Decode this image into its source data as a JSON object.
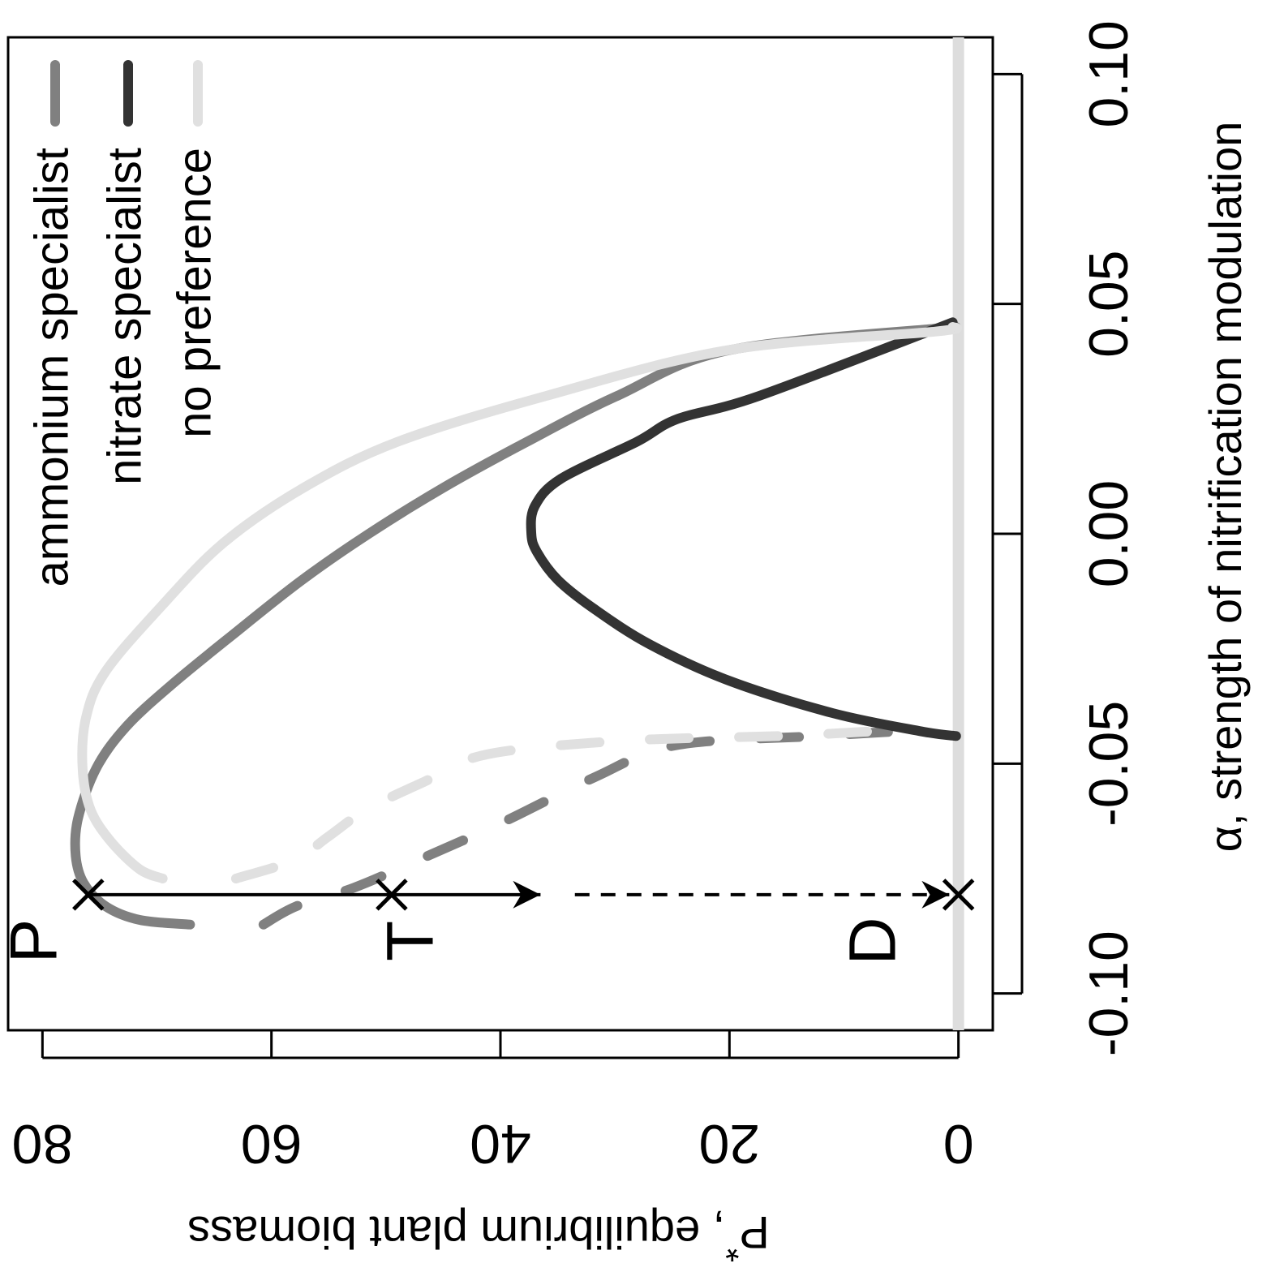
{
  "chart_data": {
    "type": "line",
    "orientation": "rotated-90-clockwise",
    "xlabel": "α, strength of nitrification modulation",
    "ylabel": "P*, equilibrium plant biomass",
    "ylabel_main": "P",
    "ylabel_super": "*",
    "ylabel_rest": ", equilibrium plant biomass",
    "xlim": [
      -0.108,
      0.108
    ],
    "ylim": [
      -3,
      83
    ],
    "x_ticks": [
      -0.1,
      -0.05,
      0.0,
      0.05,
      0.1
    ],
    "x_tick_labels": [
      "-0.10",
      "-0.05",
      "0.00",
      "0.05",
      "0.10"
    ],
    "y_ticks": [
      0,
      20,
      40,
      60,
      80
    ],
    "y_tick_labels": [
      "0",
      "20",
      "40",
      "60",
      "80"
    ],
    "grid": false,
    "legend_position": "top-right",
    "series": [
      {
        "name": "ammonium specialist",
        "color": "#808080",
        "stable": [
          [
            -0.085,
            67.1
          ],
          [
            -0.084,
            71.5
          ],
          [
            -0.081,
            74.5
          ],
          [
            -0.076,
            76.4
          ],
          [
            -0.07,
            77.1
          ],
          [
            -0.062,
            76.9
          ],
          [
            -0.051,
            75.3
          ],
          [
            -0.042,
            72.7
          ],
          [
            -0.033,
            68.8
          ],
          [
            -0.022,
            63.4
          ],
          [
            -0.01,
            57.3
          ],
          [
            0.0,
            51.5
          ],
          [
            0.01,
            45.0
          ],
          [
            0.02,
            37.7
          ],
          [
            0.03,
            29.8
          ],
          [
            0.04,
            19.9
          ],
          [
            0.045,
            0.2
          ]
        ],
        "unstable": [
          [
            -0.085,
            60.7
          ],
          [
            -0.081,
            57.8
          ],
          [
            -0.077,
            52.8
          ],
          [
            -0.071,
            47.2
          ],
          [
            -0.063,
            40.0
          ],
          [
            -0.053,
            31.8
          ],
          [
            -0.046,
            24.7
          ],
          [
            -0.044,
            12.2
          ],
          [
            -0.043,
            5.5
          ]
        ]
      },
      {
        "name": "nitrate specialist",
        "color": "#333333",
        "stable": [
          [
            -0.044,
            0.2
          ],
          [
            -0.043,
            3.2
          ],
          [
            -0.039,
            11.0
          ],
          [
            -0.032,
            20.0
          ],
          [
            -0.024,
            27.0
          ],
          [
            -0.016,
            32.0
          ],
          [
            -0.01,
            35.0
          ],
          [
            -0.004,
            36.8
          ],
          [
            0.0,
            37.3
          ],
          [
            0.006,
            37.0
          ],
          [
            0.012,
            34.7
          ],
          [
            0.02,
            28.1
          ],
          [
            0.025,
            24.5
          ],
          [
            0.03,
            17.4
          ],
          [
            0.046,
            0.5
          ]
        ],
        "unstable": []
      },
      {
        "name": "no preference",
        "color": "#e0e0e0",
        "stable": [
          [
            -0.075,
            69.5
          ],
          [
            -0.073,
            71.5
          ],
          [
            -0.067,
            74.0
          ],
          [
            -0.06,
            75.8
          ],
          [
            -0.051,
            76.5
          ],
          [
            -0.04,
            76.2
          ],
          [
            -0.03,
            74.5
          ],
          [
            -0.016,
            69.7
          ],
          [
            -0.002,
            64.2
          ],
          [
            0.01,
            57.2
          ],
          [
            0.02,
            49.0
          ],
          [
            0.03,
            36.0
          ],
          [
            0.04,
            20.0
          ],
          [
            0.044,
            2.0
          ],
          [
            0.045,
            0.5
          ]
        ],
        "unstable": [
          [
            -0.075,
            63.1
          ],
          [
            -0.071,
            58.0
          ],
          [
            -0.066,
            55.1
          ],
          [
            -0.06,
            51.7
          ],
          [
            -0.054,
            46.7
          ],
          [
            -0.048,
            41.2
          ],
          [
            -0.045,
            29.1
          ],
          [
            -0.044,
            15.5
          ],
          [
            -0.043,
            7.8
          ]
        ]
      }
    ],
    "baseline": {
      "color": "#dddddd",
      "y": 0,
      "x_range": [
        -0.108,
        0.108
      ]
    },
    "markers": [
      {
        "label": "P",
        "x": -0.0785,
        "y": 76.0
      },
      {
        "label": "T",
        "x": -0.0785,
        "y": 49.5
      },
      {
        "label": "D",
        "x": -0.0785,
        "y": 0
      }
    ],
    "arrows": [
      {
        "from_y": 76.0,
        "to_y": 36.5,
        "x": -0.0785,
        "style": "solid"
      },
      {
        "from_y": 33.5,
        "to_y": 0.8,
        "x": -0.0785,
        "style": "dashed"
      }
    ]
  }
}
